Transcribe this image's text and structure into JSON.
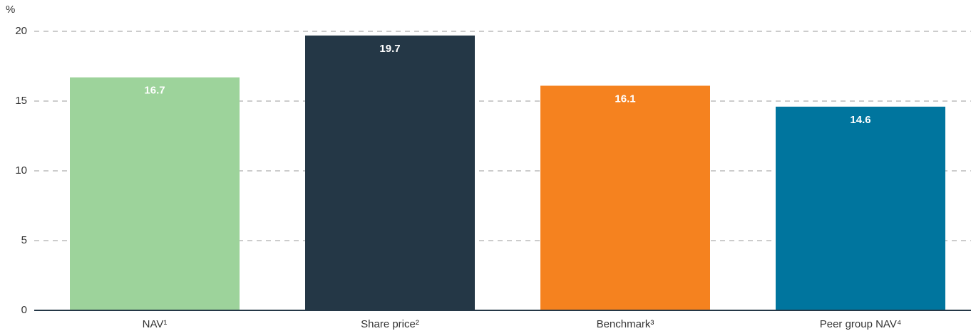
{
  "chart_data": {
    "type": "bar",
    "y_label": "%",
    "categories": [
      "NAV¹",
      "Share price²",
      "Benchmark³",
      "Peer group NAV⁴"
    ],
    "values": [
      16.7,
      19.7,
      16.1,
      14.6
    ],
    "colors": [
      "#9dd39b",
      "#243746",
      "#f5821f",
      "#00759e"
    ],
    "ylim": [
      0,
      20
    ],
    "yticks": [
      0,
      5,
      10,
      15,
      20
    ],
    "grid": true
  }
}
